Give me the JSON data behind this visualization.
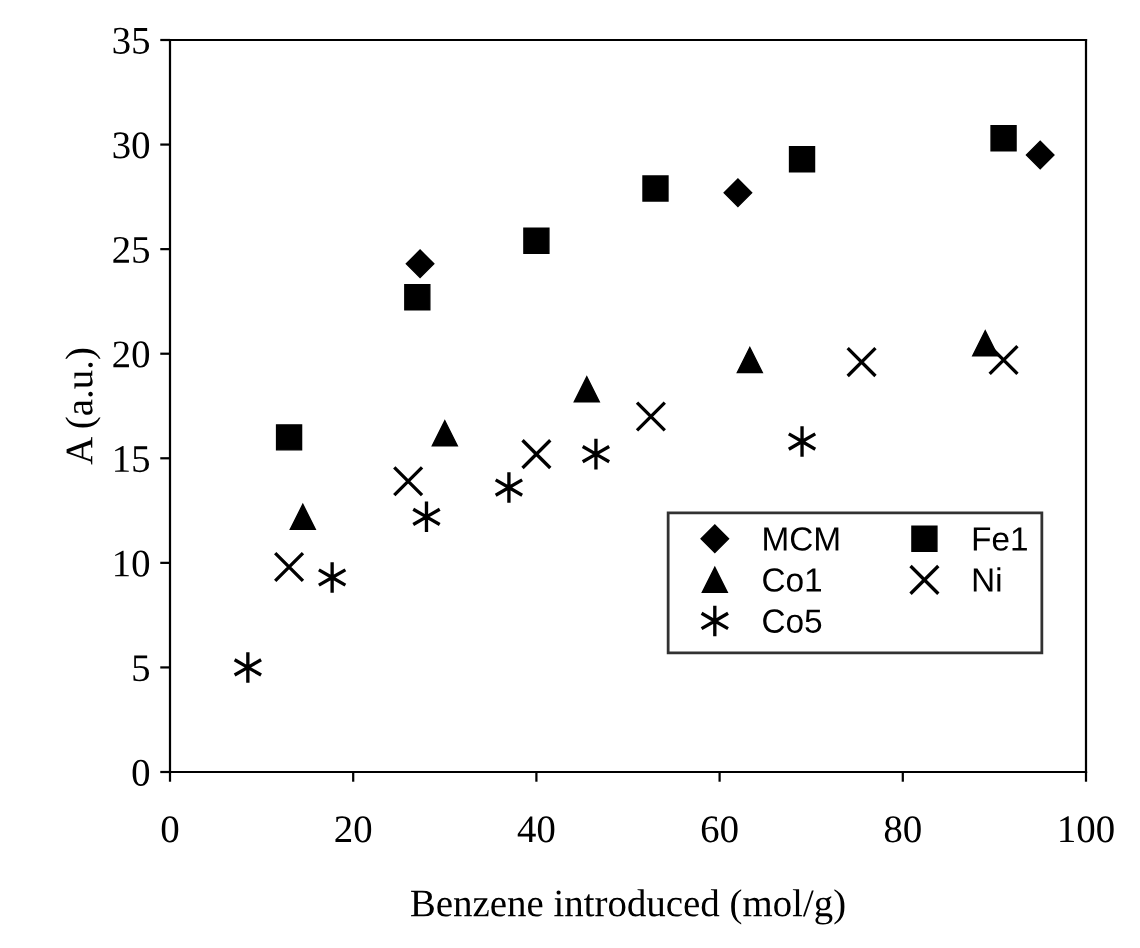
{
  "chart_data": {
    "type": "scatter",
    "xlabel": "Benzene introduced (mol/g)",
    "ylabel": "A (a.u.)",
    "xlim": [
      0,
      100
    ],
    "xticks": [
      0,
      20,
      40,
      60,
      80,
      100
    ],
    "ylim": [
      0,
      35
    ],
    "yticks": [
      0,
      5,
      10,
      15,
      20,
      25,
      30,
      35
    ],
    "grid": false,
    "legend": "bottom right",
    "series": [
      {
        "name": "MCM",
        "color": "#000000",
        "marker": "diamond",
        "x": [
          27.3,
          62,
          95
        ],
        "values": [
          24.3,
          27.7,
          29.5
        ]
      },
      {
        "name": "Fe1",
        "color": "#000000",
        "marker": "square",
        "x": [
          13,
          27,
          40,
          53,
          69,
          91
        ],
        "values": [
          16,
          22.7,
          25.4,
          27.9,
          29.3,
          30.3
        ]
      },
      {
        "name": "Co1",
        "color": "#000000",
        "marker": "triangle",
        "x": [
          14.5,
          30,
          45.5,
          63.3,
          89
        ],
        "values": [
          12.2,
          16.2,
          18.3,
          19.7,
          20.5
        ]
      },
      {
        "name": "Ni",
        "color": "#000000",
        "marker": "cross",
        "x": [
          13,
          26,
          40,
          52.5,
          75.5,
          91
        ],
        "values": [
          9.8,
          13.9,
          15.2,
          17,
          19.6,
          19.7
        ]
      },
      {
        "name": "Co5",
        "color": "#000000",
        "x": [
          8.5,
          17.7,
          28,
          37,
          46.5,
          69
        ],
        "values": [
          5,
          9.3,
          12.2,
          13.6,
          15.2,
          15.8
        ]
      }
    ]
  }
}
